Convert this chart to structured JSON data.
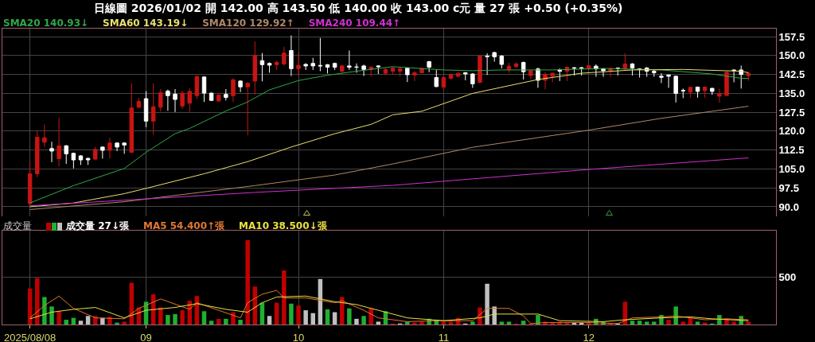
{
  "chart_data": [
    {
      "type": "candlestick",
      "title": "日線圖 2026/01/02 開 142.00 高 143.50 低 140.00 收 143.00 c元 量 27 張 +0.50 (+0.35%)",
      "legend": "top left",
      "grid": true,
      "tick_labels": "y",
      "categories": [
        "2025/08/08",
        null,
        null,
        null,
        null,
        null,
        null,
        null,
        null,
        null,
        null,
        null,
        null,
        null,
        null,
        null,
        "09",
        null,
        null,
        null,
        null,
        null,
        null,
        null,
        null,
        null,
        null,
        null,
        null,
        null,
        null,
        null,
        null,
        null,
        null,
        null,
        null,
        "10",
        null,
        null,
        null,
        null,
        null,
        null,
        null,
        null,
        null,
        null,
        null,
        null,
        null,
        null,
        null,
        null,
        null,
        null,
        null,
        "11",
        null,
        null,
        null,
        null,
        null,
        null,
        null,
        null,
        null,
        null,
        null,
        null,
        null,
        null,
        null,
        null,
        null,
        null,
        null,
        "12",
        null,
        null,
        null,
        null,
        null,
        null,
        null,
        null,
        null,
        null,
        null,
        null,
        null,
        null,
        null,
        null,
        null,
        null,
        null,
        null,
        null,
        null
      ],
      "ylim": [
        86.2,
        160.7
      ],
      "yticks": [
        {
          "value": 90,
          "label": "90.0"
        },
        97.5,
        {
          "value": 105,
          "label": "105.0"
        },
        112.5,
        {
          "value": 120,
          "label": "120.0"
        },
        127.5,
        {
          "value": 135,
          "label": "135.0"
        },
        142.5,
        {
          "value": 150,
          "label": "150.0"
        },
        157.5
      ],
      "series": [
        {
          "ohlc": [
            [
              91.2,
              107.9,
              91.0,
              103.1
            ],
            [
              103.1,
              120.0,
              101.7,
              117.6
            ],
            [
              115.6,
              122.7,
              113.7,
              117.4
            ],
            [
              113.1,
              115.8,
              107.7,
              112.1
            ],
            [
              109.1,
              125.3,
              106.0,
              114.2
            ],
            [
              114.2,
              114.5,
              107.0,
              111.0
            ],
            [
              111.2,
              111.5,
              105.2,
              108.6
            ],
            [
              110.2,
              110.5,
              106.6,
              108.6
            ],
            [
              109.2,
              109.5,
              106.6,
              108.6
            ],
            [
              108.9,
              113.7,
              108.4,
              112.8
            ],
            [
              113.7,
              114.0,
              109.1,
              112.4
            ],
            [
              112.4,
              117.4,
              109.1,
              115.3
            ],
            [
              115.3,
              115.6,
              112.1,
              113.7
            ],
            [
              115.3,
              115.6,
              111.0,
              114.5
            ],
            [
              111.6,
              139.0,
              111.4,
              129.2
            ],
            [
              129.5,
              133.2,
              129.0,
              131.8
            ],
            [
              132.9,
              135.9,
              121.6,
              124.0
            ],
            [
              124.0,
              139.0,
              118.6,
              129.7
            ],
            [
              129.5,
              136.7,
              127.9,
              135.3
            ],
            [
              135.9,
              136.5,
              128.1,
              134.1
            ],
            [
              134.7,
              136.7,
              127.6,
              132.6
            ],
            [
              130.0,
              136.0,
              128.8,
              135.1
            ],
            [
              131.1,
              137.0,
              127.6,
              135.8
            ],
            [
              134.1,
              142.2,
              132.7,
              141.7
            ],
            [
              141.5,
              141.8,
              131.6,
              135.1
            ],
            [
              135.1,
              135.4,
              132.0,
              132.2
            ],
            [
              132.0,
              135.1,
              131.6,
              134.3
            ],
            [
              134.6,
              136.7,
              132.2,
              133.4
            ],
            [
              134.1,
              141.0,
              131.6,
              140.4
            ],
            [
              139.9,
              140.2,
              135.5,
              137.6
            ],
            [
              137.6,
              139.5,
              118.4,
              139.0
            ],
            [
              139.9,
              155.6,
              134.5,
              150.0
            ],
            [
              148.0,
              151.0,
              139.8,
              146.4
            ],
            [
              146.9,
              147.3,
              143.2,
              146.2
            ],
            [
              146.4,
              148.0,
              144.3,
              147.3
            ],
            [
              146.7,
              153.5,
              146.1,
              151.0
            ],
            [
              152.0,
              158.0,
              141.9,
              144.8
            ],
            [
              144.8,
              151.2,
              141.9,
              146.1
            ],
            [
              146.5,
              147.0,
              144.3,
              145.9
            ],
            [
              146.9,
              149.1,
              144.3,
              145.9
            ],
            [
              146.1,
              157.0,
              143.8,
              145.9
            ],
            [
              146.4,
              146.6,
              142.9,
              145.4
            ],
            [
              146.9,
              147.2,
              144.3,
              145.4
            ],
            [
              143.8,
              146.4,
              143.0,
              145.9
            ],
            [
              145.9,
              152.0,
              144.3,
              145.4
            ],
            [
              145.5,
              146.9,
              143.2,
              145.4
            ],
            [
              145.9,
              146.4,
              141.9,
              144.5
            ],
            [
              144.5,
              145.8,
              141.7,
              145.4
            ],
            [
              145.9,
              146.2,
              142.7,
              145.6
            ],
            [
              143.0,
              145.0,
              142.2,
              144.5
            ],
            [
              143.8,
              145.5,
              142.7,
              145.0
            ],
            [
              143.8,
              145.3,
              141.7,
              144.8
            ],
            [
              145.0,
              145.3,
              139.5,
              142.4
            ],
            [
              142.3,
              143.8,
              139.9,
              143.2
            ],
            [
              143.2,
              145.2,
              143.0,
              144.9
            ],
            [
              147.6,
              147.9,
              143.4,
              145.4
            ],
            [
              141.3,
              144.3,
              137.5,
              137.7
            ],
            [
              137.5,
              141.8,
              136.6,
              141.3
            ],
            [
              141.0,
              143.0,
              140.5,
              142.5
            ],
            [
              141.8,
              143.5,
              141.3,
              142.9
            ],
            [
              143.2,
              143.5,
              140.2,
              142.7
            ],
            [
              142.7,
              143.0,
              137.2,
              138.8
            ],
            [
              139.4,
              150.0,
              139.0,
              149.8
            ],
            [
              149.8,
              150.9,
              142.3,
              149.6
            ],
            [
              151.2,
              151.5,
              147.6,
              149.5
            ],
            [
              149.8,
              150.2,
              144.9,
              146.5
            ],
            [
              144.5,
              147.1,
              143.2,
              145.8
            ],
            [
              145.6,
              147.3,
              145.0,
              146.7
            ],
            [
              147.3,
              147.6,
              140.5,
              143.6
            ],
            [
              142.1,
              144.3,
              140.7,
              144.0
            ],
            [
              144.7,
              145.2,
              137.2,
              140.2
            ],
            [
              140.2,
              143.5,
              136.6,
              142.5
            ],
            [
              141.8,
              143.3,
              139.4,
              143.0
            ],
            [
              144.3,
              144.9,
              139.9,
              143.8
            ],
            [
              143.8,
              145.6,
              139.9,
              145.4
            ],
            [
              145.2,
              145.4,
              142.1,
              145.0
            ],
            [
              145.2,
              145.5,
              142.1,
              145.0
            ],
            [
              144.9,
              146.3,
              144.3,
              146.0
            ],
            [
              145.8,
              146.5,
              141.6,
              144.7
            ],
            [
              144.7,
              145.0,
              141.6,
              144.0
            ],
            [
              143.8,
              145.2,
              141.6,
              144.9
            ],
            [
              145.0,
              145.3,
              142.1,
              144.9
            ],
            [
              144.9,
              150.9,
              144.1,
              146.7
            ],
            [
              146.7,
              147.0,
              142.1,
              145.1
            ],
            [
              144.7,
              145.0,
              141.3,
              144.6
            ],
            [
              145.1,
              145.4,
              141.6,
              143.8
            ],
            [
              143.8,
              144.3,
              141.6,
              143.2
            ],
            [
              141.8,
              143.0,
              139.1,
              141.4
            ],
            [
              142.3,
              142.5,
              137.2,
              141.8
            ],
            [
              141.8,
              142.0,
              131.4,
              135.0
            ],
            [
              136.2,
              136.9,
              133.1,
              136.0
            ],
            [
              135.5,
              137.6,
              133.3,
              137.4
            ],
            [
              137.5,
              137.7,
              133.3,
              135.8
            ],
            [
              136.1,
              137.7,
              133.3,
              137.5
            ],
            [
              137.0,
              137.2,
              134.4,
              135.8
            ],
            [
              133.9,
              136.9,
              131.4,
              134.8
            ],
            [
              134.2,
              143.6,
              134.0,
              143.4
            ],
            [
              144.3,
              144.5,
              139.4,
              144.1
            ],
            [
              144.3,
              146.0,
              136.9,
              142.5
            ],
            [
              142.0,
              143.5,
              140.0,
              143.0
            ]
          ],
          "colors": [
            "#c81414",
            "#c81414",
            "#c81414",
            "#ffffff",
            "#c81414",
            "#ffffff",
            "#ffffff",
            "#ffffff",
            "#ffffff",
            "#c81414",
            "#ffffff",
            "#c81414",
            "#ffffff",
            "#ffffff",
            "#c81414",
            "#c81414",
            "#ffffff",
            "#c81414",
            "#c81414",
            "#ffffff",
            "#ffffff",
            "#c81414",
            "#c81414",
            "#c81414",
            "#ffffff",
            "#ffffff",
            "#c81414",
            "#ffffff",
            "#c81414",
            "#ffffff",
            "#c81414",
            "#c81414",
            "#ffffff",
            "#ffffff",
            "#c81414",
            "#c81414",
            "#ffffff",
            "#c81414",
            "#ffffff",
            "#ffffff",
            "#ffffff",
            "#ffffff",
            "#ffffff",
            "#c81414",
            "#ffffff",
            "#ffffff",
            "#ffffff",
            "#c81414",
            "#ffffff",
            "#c81414",
            "#c81414",
            "#c81414",
            "#ffffff",
            "#c81414",
            "#c81414",
            "#ffffff",
            "#ffffff",
            "#c81414",
            "#c81414",
            "#c81414",
            "#ffffff",
            "#ffffff",
            "#c81414",
            "#ffffff",
            "#ffffff",
            "#ffffff",
            "#c81414",
            "#c81414",
            "#ffffff",
            "#c81414",
            "#ffffff",
            "#c81414",
            "#c81414",
            "#ffffff",
            "#c81414",
            "#ffffff",
            "#ffffff",
            "#c81414",
            "#ffffff",
            "#ffffff",
            "#c81414",
            "#ffffff",
            "#c81414",
            "#ffffff",
            "#ffffff",
            "#ffffff",
            "#ffffff",
            "#ffffff",
            "#ffffff",
            "#ffffff",
            "#ffffff",
            "#c81414",
            "#ffffff",
            "#c81414",
            "#ffffff",
            "#c81414",
            "#c81414",
            "#ffffff",
            "#ffffff",
            "#c81414"
          ]
        },
        {
          "type": "line",
          "name": "SMA20 140.93↓",
          "color": "#2fa84a",
          "values": [
            91.5,
            null,
            null,
            null,
            null,
            null,
            98.4,
            null,
            null,
            null,
            null,
            null,
            null,
            105.2,
            null,
            null,
            111.6,
            null,
            null,
            null,
            119.0,
            null,
            121.1,
            null,
            null,
            null,
            null,
            128.0,
            null,
            null,
            131.6,
            null,
            null,
            136.4,
            null,
            null,
            null,
            140.1,
            null,
            null,
            null,
            142.2,
            null,
            null,
            null,
            143.8,
            null,
            null,
            null,
            null,
            145.6,
            null,
            null,
            null,
            null,
            null,
            null,
            144.3,
            null,
            null,
            null,
            144.0,
            null,
            null,
            null,
            144.3,
            null,
            null,
            null,
            null,
            null,
            null,
            144.3,
            null,
            null,
            null,
            null,
            null,
            null,
            144.9,
            null,
            null,
            null,
            null,
            null,
            null,
            null,
            144.3,
            null,
            null,
            null,
            null,
            null,
            null,
            142.7,
            null,
            null,
            null,
            141.0,
            140.9
          ]
        },
        {
          "type": "line",
          "name": "SMA60 143.19↓",
          "color": "#e8e070",
          "values": [
            90.0,
            null,
            null,
            null,
            null,
            null,
            91.5,
            null,
            null,
            null,
            null,
            null,
            null,
            95.2,
            null,
            null,
            97.3,
            null,
            null,
            null,
            null,
            null,
            null,
            null,
            103.1,
            null,
            null,
            null,
            null,
            null,
            107.9,
            null,
            null,
            null,
            null,
            null,
            113.7,
            null,
            null,
            null,
            null,
            null,
            119.0,
            null,
            null,
            null,
            null,
            122.7,
            null,
            null,
            126.5,
            null,
            null,
            null,
            127.9,
            null,
            null,
            null,
            null,
            null,
            null,
            135.0,
            null,
            null,
            null,
            null,
            null,
            null,
            null,
            null,
            140.5,
            null,
            null,
            null,
            null,
            null,
            143.0,
            null,
            null,
            null,
            null,
            null,
            null,
            144.3,
            null,
            null,
            null,
            null,
            null,
            null,
            144.5,
            null,
            null,
            null,
            null,
            null,
            null,
            null,
            143.8,
            143.2
          ]
        },
        {
          "type": "line",
          "name": "SMA120 129.92↑",
          "color": "#b08868",
          "values": [
            88.9,
            null,
            null,
            null,
            null,
            null,
            null,
            null,
            null,
            null,
            null,
            null,
            null,
            92.0,
            null,
            null,
            null,
            null,
            null,
            null,
            null,
            null,
            null,
            null,
            null,
            null,
            null,
            null,
            null,
            null,
            null,
            98.4,
            null,
            null,
            null,
            null,
            null,
            null,
            null,
            null,
            null,
            null,
            102.6,
            null,
            null,
            null,
            null,
            null,
            null,
            null,
            107.0,
            null,
            null,
            null,
            null,
            null,
            null,
            null,
            null,
            null,
            null,
            113.6,
            null,
            null,
            null,
            null,
            null,
            null,
            null,
            null,
            null,
            null,
            null,
            null,
            null,
            null,
            null,
            120.4,
            null,
            null,
            null,
            null,
            null,
            null,
            null,
            null,
            null,
            125.1,
            null,
            null,
            null,
            null,
            null,
            null,
            null,
            null,
            null,
            null,
            null,
            129.9
          ]
        },
        {
          "type": "line",
          "name": "SMA240 109.44↑",
          "color": "#d030d0",
          "values": [
            90.4,
            null,
            null,
            null,
            null,
            null,
            null,
            null,
            null,
            null,
            null,
            null,
            null,
            92.6,
            null,
            null,
            null,
            null,
            null,
            null,
            null,
            null,
            null,
            null,
            null,
            null,
            null,
            null,
            null,
            null,
            null,
            95.7,
            null,
            null,
            null,
            null,
            null,
            null,
            null,
            null,
            null,
            null,
            null,
            null,
            null,
            null,
            null,
            null,
            null,
            null,
            98.5,
            null,
            null,
            null,
            null,
            null,
            null,
            null,
            null,
            null,
            null,
            null,
            null,
            null,
            null,
            null,
            null,
            null,
            null,
            null,
            null,
            null,
            null,
            null,
            null,
            null,
            null,
            104.8,
            null,
            null,
            null,
            null,
            null,
            null,
            null,
            null,
            null,
            null,
            null,
            null,
            null,
            null,
            null,
            null,
            null,
            null,
            null,
            null,
            null,
            109.4
          ]
        }
      ]
    },
    {
      "type": "bar",
      "ylabel": "成交量",
      "legend": "top left",
      "grid": true,
      "categories": [
        "2025/08/08",
        null,
        null,
        null,
        null,
        null,
        null,
        null,
        null,
        null,
        null,
        null,
        null,
        null,
        null,
        null,
        "09",
        null,
        null,
        null,
        null,
        null,
        null,
        null,
        null,
        null,
        null,
        null,
        null,
        null,
        null,
        null,
        null,
        null,
        null,
        null,
        null,
        "10",
        null,
        null,
        null,
        null,
        null,
        null,
        null,
        null,
        null,
        null,
        null,
        null,
        null,
        null,
        null,
        null,
        null,
        null,
        null,
        "11",
        null,
        null,
        null,
        null,
        null,
        null,
        null,
        null,
        null,
        null,
        null,
        null,
        null,
        null,
        null,
        null,
        null,
        null,
        null,
        "12",
        null,
        null,
        null,
        null,
        null,
        null,
        null,
        null,
        null,
        null,
        null,
        null,
        null,
        null,
        null,
        null,
        null,
        null,
        null,
        null,
        null,
        null
      ],
      "ylim": [
        0,
        990
      ],
      "yticks": [
        {
          "value": 0,
          "label": null
        },
        500
      ],
      "series": [
        {
          "name": "成交量 27↓張",
          "values": [
            380,
            490,
            290,
            190,
            140,
            50,
            70,
            40,
            90,
            90,
            70,
            80,
            20,
            30,
            440,
            180,
            240,
            320,
            180,
            100,
            110,
            150,
            250,
            300,
            140,
            40,
            60,
            60,
            130,
            50,
            890,
            400,
            230,
            90,
            230,
            570,
            220,
            200,
            150,
            120,
            480,
            160,
            130,
            290,
            170,
            60,
            90,
            170,
            30,
            140,
            10,
            10,
            30,
            20,
            30,
            60,
            50,
            30,
            30,
            70,
            10,
            30,
            180,
            430,
            190,
            30,
            30,
            10,
            40,
            10,
            100,
            30,
            20,
            30,
            20,
            20,
            20,
            20,
            60,
            30,
            10,
            10,
            240,
            40,
            40,
            30,
            30,
            100,
            50,
            190,
            30,
            70,
            30,
            20,
            10,
            100,
            60,
            30,
            90,
            30
          ],
          "colors": [
            "#c00000",
            "#c00000",
            "#20b030",
            "#20b030",
            "#c00000",
            "#20b030",
            "#20b030",
            "#c0c0c0",
            "#c0c0c0",
            "#c00000",
            "#c0c0c0",
            "#c00000",
            "#20b030",
            "#c00000",
            "#c00000",
            "#c00000",
            "#20b030",
            "#c00000",
            "#c00000",
            "#20b030",
            "#20b030",
            "#c00000",
            "#c00000",
            "#c00000",
            "#20b030",
            "#20b030",
            "#c00000",
            "#20b030",
            "#c00000",
            "#20b030",
            "#c00000",
            "#c00000",
            "#20b030",
            "#c0c0c0",
            "#c00000",
            "#c00000",
            "#20b030",
            "#c00000",
            "#c0c0c0",
            "#c0c0c0",
            "#c0c0c0",
            "#20b030",
            "#c0c0c0",
            "#c00000",
            "#20b030",
            "#c0c0c0",
            "#20b030",
            "#c00000",
            "#c0c0c0",
            "#20b030",
            "#c00000",
            "#c0c0c0",
            "#20b030",
            "#c00000",
            "#c00000",
            "#20b030",
            "#20b030",
            "#c00000",
            "#c00000",
            "#c00000",
            "#c0c0c0",
            "#20b030",
            "#c00000",
            "#c0c0c0",
            "#c0c0c0",
            "#20b030",
            "#20b030",
            "#c00000",
            "#20b030",
            "#c00000",
            "#20b030",
            "#c00000",
            "#c00000",
            "#c00000",
            "#c00000",
            "#c0c0c0",
            "#c0c0c0",
            "#c00000",
            "#20b030",
            "#20b030",
            "#c00000",
            "#c0c0c0",
            "#c00000",
            "#20b030",
            "#20b030",
            "#20b030",
            "#20b030",
            "#20b030",
            "#c00000",
            "#20b030",
            "#c00000",
            "#c00000",
            "#20b030",
            "#c00000",
            "#20b030",
            "#20b030",
            "#c00000",
            "#c00000",
            "#20b030",
            "#c00000"
          ]
        },
        {
          "type": "line",
          "name": "MA5 54.400↑張",
          "color": "#e07830",
          "values": [
            70,
            null,
            200,
            null,
            300,
            null,
            170,
            null,
            null,
            70,
            null,
            null,
            null,
            60,
            null,
            170,
            null,
            null,
            270,
            null,
            null,
            null,
            160,
            230,
            null,
            null,
            150,
            null,
            null,
            70,
            230,
            null,
            320,
            null,
            360,
            280,
            null,
            null,
            280,
            null,
            null,
            null,
            230,
            250,
            null,
            null,
            150,
            null,
            70,
            null,
            null,
            null,
            30,
            null,
            null,
            null,
            40,
            null,
            null,
            null,
            null,
            40,
            null,
            170,
            null,
            null,
            170,
            null,
            90,
            10,
            null,
            20,
            null,
            null,
            null,
            null,
            null,
            20,
            null,
            null,
            null,
            10,
            null,
            70,
            null,
            null,
            null,
            80,
            null,
            90,
            null,
            null,
            null,
            50,
            null,
            null,
            60,
            null,
            null,
            50
          ]
        },
        {
          "type": "line",
          "name": "MA10 38.500↓張",
          "color": "#e8e040",
          "values": [
            60,
            null,
            null,
            130,
            null,
            null,
            160,
            null,
            null,
            180,
            null,
            null,
            null,
            70,
            null,
            null,
            150,
            null,
            null,
            null,
            180,
            null,
            null,
            220,
            null,
            null,
            null,
            160,
            null,
            null,
            130,
            null,
            230,
            null,
            290,
            null,
            null,
            null,
            300,
            null,
            null,
            null,
            240,
            null,
            null,
            210,
            null,
            null,
            150,
            null,
            null,
            null,
            70,
            null,
            null,
            null,
            null,
            40,
            null,
            null,
            null,
            null,
            70,
            null,
            110,
            null,
            null,
            null,
            null,
            null,
            110,
            null,
            null,
            40,
            null,
            null,
            null,
            null,
            null,
            30,
            null,
            null,
            50,
            null,
            null,
            null,
            null,
            70,
            null,
            null,
            null,
            80,
            null,
            null,
            60,
            null,
            null,
            null,
            null,
            40
          ]
        }
      ]
    }
  ]
}
